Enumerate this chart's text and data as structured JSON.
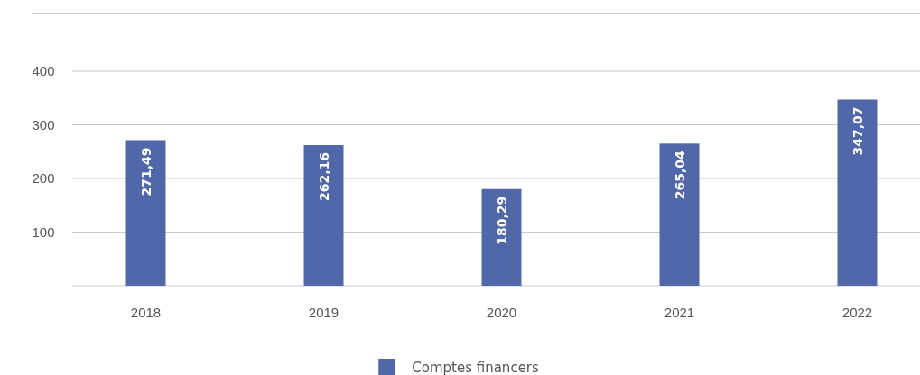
{
  "chart_data": {
    "type": "bar",
    "categories": [
      "2018",
      "2019",
      "2020",
      "2021",
      "2022"
    ],
    "series": [
      {
        "name": "Comptes financers",
        "color": "#5068a9",
        "values": [
          271.49,
          262.16,
          180.29,
          265.04,
          347.07
        ]
      }
    ],
    "value_labels": [
      "271,49",
      "262,16",
      "180,29",
      "265,04",
      "347,07"
    ],
    "ylim": [
      0,
      400
    ],
    "yticks": [
      {
        "value": 0,
        "label": null
      },
      100,
      200,
      300,
      400
    ],
    "grid": "y",
    "legend": "bottom"
  }
}
